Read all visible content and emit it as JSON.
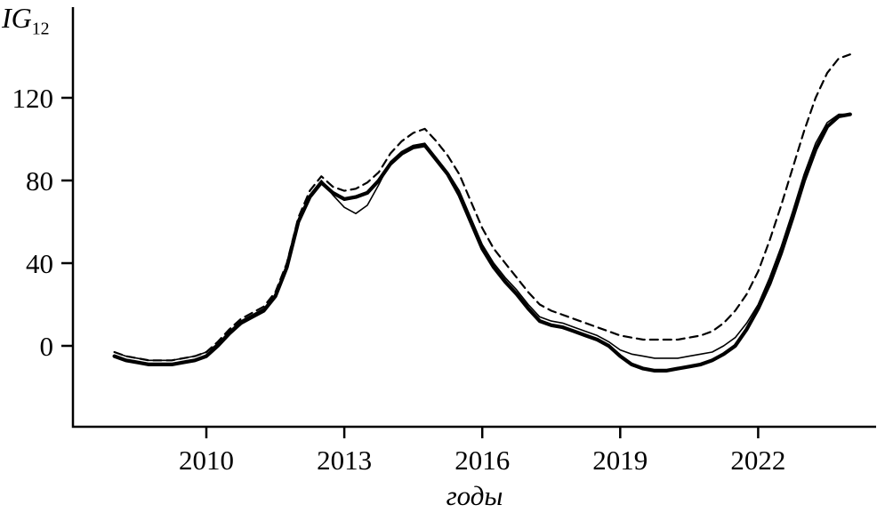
{
  "chart_data": {
    "type": "line",
    "title": "",
    "xlabel": "годы",
    "ylabel_main": "IG",
    "ylabel_sub": "12",
    "x_ticks": [
      2010,
      2013,
      2016,
      2019,
      2022
    ],
    "y_ticks": [
      0,
      40,
      80,
      120
    ],
    "x_range": [
      2007.8,
      2024.4
    ],
    "y_range": [
      -40,
      164
    ],
    "grid": false,
    "legend": "none",
    "line_color": "#000000",
    "x": [
      2008.0,
      2008.25,
      2008.5,
      2008.75,
      2009.0,
      2009.25,
      2009.5,
      2009.75,
      2010.0,
      2010.25,
      2010.5,
      2010.75,
      2011.0,
      2011.25,
      2011.5,
      2011.75,
      2012.0,
      2012.25,
      2012.5,
      2012.75,
      2013.0,
      2013.25,
      2013.5,
      2013.75,
      2014.0,
      2014.25,
      2014.5,
      2014.75,
      2015.0,
      2015.25,
      2015.5,
      2015.75,
      2016.0,
      2016.25,
      2016.5,
      2016.75,
      2017.0,
      2017.25,
      2017.5,
      2017.75,
      2018.0,
      2018.25,
      2018.5,
      2018.75,
      2019.0,
      2019.25,
      2019.5,
      2019.75,
      2020.0,
      2020.25,
      2020.5,
      2020.75,
      2021.0,
      2021.25,
      2021.5,
      2021.75,
      2022.0,
      2022.25,
      2022.5,
      2022.75,
      2023.0,
      2023.25,
      2023.5,
      2023.75,
      2024.0
    ],
    "series": [
      {
        "name": "thick-solid-curve",
        "style": "thick-solid",
        "values": [
          -5,
          -7,
          -8,
          -9,
          -9,
          -9,
          -8,
          -7,
          -5,
          0,
          6,
          11,
          14,
          17,
          24,
          38,
          60,
          72,
          79,
          74,
          71,
          72,
          74,
          80,
          88,
          93,
          96,
          97,
          90,
          83,
          73,
          60,
          47,
          38,
          31,
          25,
          18,
          12,
          10,
          9,
          7,
          5,
          3,
          0,
          -5,
          -9,
          -11,
          -12,
          -12,
          -11,
          -10,
          -9,
          -7,
          -4,
          0,
          8,
          18,
          30,
          45,
          62,
          80,
          95,
          106,
          111,
          112
        ]
      },
      {
        "name": "thin-solid-curve",
        "style": "thin-solid",
        "values": [
          -3,
          -5,
          -6,
          -7,
          -7,
          -7,
          -6,
          -5,
          -3,
          1,
          7,
          12,
          15,
          18,
          25,
          39,
          61,
          73,
          80,
          73,
          67,
          64,
          68,
          78,
          89,
          94,
          97,
          98,
          91,
          84,
          75,
          62,
          49,
          40,
          33,
          27,
          20,
          14,
          12,
          11,
          9,
          7,
          5,
          2,
          -2,
          -4,
          -5,
          -6,
          -6,
          -6,
          -5,
          -4,
          -3,
          0,
          4,
          11,
          20,
          33,
          48,
          65,
          83,
          98,
          108,
          112,
          112
        ]
      },
      {
        "name": "dashed-curve",
        "style": "dashed",
        "values": [
          -3,
          -5,
          -6,
          -7,
          -7,
          -7,
          -6,
          -5,
          -3,
          2,
          8,
          13,
          16,
          19,
          26,
          40,
          62,
          75,
          82,
          77,
          75,
          76,
          79,
          84,
          93,
          99,
          103,
          105,
          99,
          92,
          83,
          70,
          57,
          47,
          40,
          33,
          26,
          20,
          17,
          15,
          13,
          11,
          9,
          7,
          5,
          4,
          3,
          3,
          3,
          3,
          4,
          5,
          7,
          11,
          17,
          25,
          36,
          51,
          68,
          86,
          104,
          120,
          132,
          139,
          141
        ]
      }
    ]
  }
}
